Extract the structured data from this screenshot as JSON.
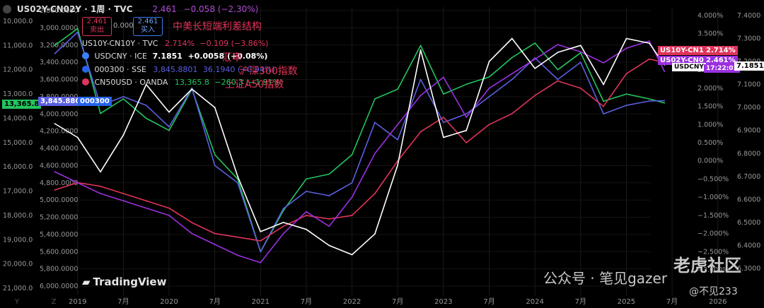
{
  "header": {
    "symbol": "US02Y-CN02Y · 1周 · TVC",
    "value": "2.461",
    "change": "−0.058 (−2.30%)",
    "sell_price": "2.461",
    "sell_label": "卖出",
    "spread": "0.000",
    "buy_price": "2.461",
    "buy_label": "买入"
  },
  "legend_rows": [
    {
      "text": "US10Y-CN10Y · TVC",
      "value": "2.714%",
      "change": "−0.109 (−3.86%)",
      "icon": "bond-dot",
      "color": "#e0345a"
    },
    {
      "text": "USDCNY · ICE",
      "value": "7.1851",
      "change": "+0.0058 (+0.08%)",
      "icon": "flag-icon",
      "color": "#ffffff"
    },
    {
      "text": "000300 · SSE",
      "value": "3,845.8801",
      "change": "36.1940 (−0.94%)",
      "icon": "index-icon",
      "color": "#5b5fe0"
    },
    {
      "text": "CN50USD · OANDA",
      "value": "13,365.8",
      "change": "−260.3 (−1.91%)",
      "icon": "index-icon",
      "color": "#22c55e"
    }
  ],
  "annotations": {
    "title": "中美长短端利差结构",
    "fx": "汇率",
    "csi300": "沪深300指数",
    "a50": "上证A50指数"
  },
  "left_axis_a50": [
    "10,000.0",
    "11,000.0",
    "12,000.0",
    "13,000.0",
    "14,000.0",
    "15,000.0",
    "16,000.0",
    "17,000.0",
    "18,000.0",
    "19,000.0",
    "20,000.0",
    "21,000.0"
  ],
  "left_axis_csi": [
    "2,800.0000",
    "3,000.0000",
    "3,200.0000",
    "3,400.0000",
    "3,600.0000",
    "3,800.0000",
    "4,000.0000",
    "4,200.0000",
    "4,400.0000",
    "4,600.0000",
    "4,800.0000",
    "5,000.0000",
    "5,200.0000",
    "5,400.0000",
    "5,600.0000",
    "5,800.0000",
    "6,000.0000"
  ],
  "right_axis_pct": [
    "4.000%",
    "3.500%",
    "3.000%",
    "2.500%",
    "2.000%",
    "1.500%",
    "1.000%",
    "0.500%",
    "0.000%",
    "−0.500%",
    "−1.000%",
    "−1.500%",
    "−2.000%",
    "−2.500%",
    "−3.000%"
  ],
  "right_axis_fx": [
    "7.4000",
    "7.3000",
    "7.2000",
    "7.1000",
    "7.0000",
    "6.9000",
    "6.8000",
    "6.7000",
    "6.6000",
    "6.5000",
    "6.4000",
    "6.3000"
  ],
  "x_axis": [
    "Y",
    "Z",
    "2019",
    "7月",
    "2020",
    "7月",
    "2021",
    "7月",
    "2022",
    "7月",
    "2023",
    "7月",
    "2024",
    "7月",
    "2025",
    "7月",
    "2026"
  ],
  "price_tags": {
    "a50": "13,365.8",
    "csi300": "3,845.8801",
    "csi300_code": "000300",
    "us10y_label": "US10Y-CN10Y",
    "us10y_value": "2.714%",
    "us02y_label": "US02Y-CN02Y",
    "us02y_value": "2.461%",
    "usdcny_label": "USDCNY",
    "usdcny_time": "17:22:01",
    "usdcny_value": "7.1851"
  },
  "branding": {
    "tradingview": "TradingView",
    "watermark_app": "老虎社区",
    "watermark_account": "公众号 · 笔见gazer",
    "watermark_user": "@不见233"
  },
  "colors": {
    "background": "#000000",
    "us10y_cn10y": "#e0345a",
    "us02y_cn02y": "#9b30e0",
    "usdcny": "#ffffff",
    "csi300": "#5b5fe0",
    "a50": "#22c55e",
    "us_2y_early": "#4aa3df"
  },
  "chart_data": {
    "type": "line",
    "title": "中美长短端利差结构",
    "x": [
      "2018-10",
      "2019-01",
      "2019-04",
      "2019-07",
      "2019-10",
      "2020-01",
      "2020-04",
      "2020-07",
      "2020-10",
      "2021-01",
      "2021-04",
      "2021-07",
      "2021-10",
      "2022-01",
      "2022-04",
      "2022-07",
      "2022-10",
      "2023-01",
      "2023-04",
      "2023-07",
      "2023-10",
      "2024-01",
      "2024-04",
      "2024-07",
      "2024-10",
      "2025-01",
      "2025-04",
      "2025-06"
    ],
    "series": [
      {
        "name": "US10Y-CN10Y",
        "axis": "pct",
        "values": [
          -0.8,
          -0.6,
          -0.7,
          -0.9,
          -1.1,
          -1.3,
          -1.7,
          -2.0,
          -2.1,
          -2.2,
          -1.8,
          -1.5,
          -1.6,
          -1.5,
          -0.9,
          0.0,
          0.8,
          1.2,
          0.5,
          1.0,
          1.3,
          1.8,
          2.2,
          2.0,
          1.5,
          2.4,
          2.8,
          2.714
        ]
      },
      {
        "name": "US02Y-CN02Y",
        "axis": "pct",
        "values": [
          -0.3,
          -0.6,
          -0.9,
          -1.1,
          -1.3,
          -1.5,
          -2.0,
          -2.3,
          -2.6,
          -2.8,
          -2.0,
          -1.4,
          -1.8,
          -1.0,
          0.2,
          1.0,
          1.8,
          2.3,
          1.2,
          2.0,
          2.4,
          2.8,
          3.2,
          3.0,
          2.7,
          3.1,
          3.3,
          2.461
        ]
      },
      {
        "name": "USDCNY",
        "axis": "fx",
        "values": [
          6.93,
          6.87,
          6.72,
          6.88,
          7.1,
          6.98,
          7.08,
          7.0,
          6.7,
          6.46,
          6.5,
          6.47,
          6.4,
          6.36,
          6.45,
          6.75,
          7.25,
          6.87,
          6.9,
          7.2,
          7.3,
          7.17,
          7.24,
          7.27,
          7.1,
          7.3,
          7.28,
          7.1851
        ]
      },
      {
        "name": "000300",
        "axis": "csi",
        "values": [
          3300,
          3050,
          3900,
          3800,
          3900,
          4150,
          3700,
          4600,
          4800,
          5600,
          5100,
          4900,
          4950,
          4800,
          4100,
          4300,
          3600,
          4100,
          4000,
          3800,
          3600,
          3350,
          3600,
          3400,
          4000,
          3900,
          3850,
          3845.8801
        ]
      },
      {
        "name": "CN50USD",
        "axis": "a50",
        "values": [
          11000,
          10300,
          13800,
          13200,
          14000,
          14500,
          12800,
          15500,
          16500,
          19500,
          17800,
          16500,
          16300,
          15500,
          13200,
          12800,
          11000,
          13000,
          12600,
          12300,
          11500,
          10900,
          12000,
          11300,
          13300,
          13000,
          13200,
          13365.8
        ]
      }
    ]
  }
}
